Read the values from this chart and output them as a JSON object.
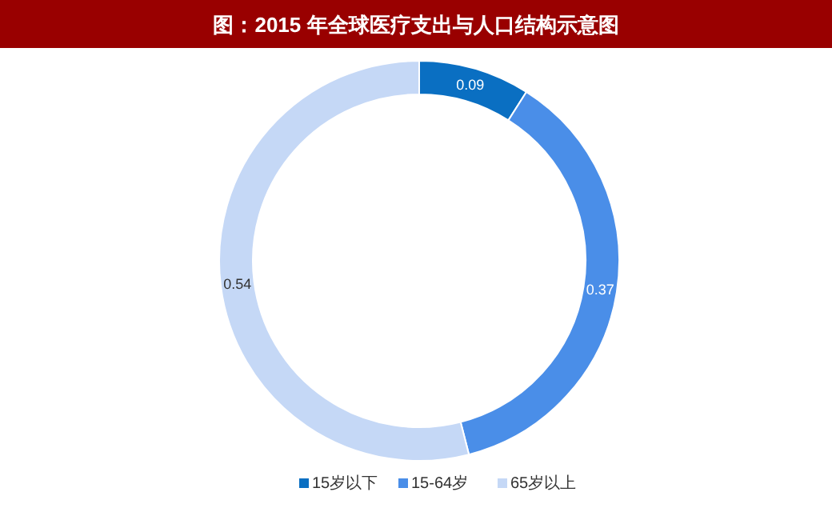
{
  "chart_data": {
    "type": "donut",
    "title": "图：2015 年全球医疗支出与人口结构示意图",
    "categories": [
      "15岁以下",
      "15-64岁",
      "65岁以上"
    ],
    "values": [
      0.09,
      0.37,
      0.54
    ],
    "colors": [
      "#0a6fc2",
      "#4a8ee8",
      "#c5d8f6"
    ],
    "data_labels": true,
    "legend": "bottom"
  }
}
